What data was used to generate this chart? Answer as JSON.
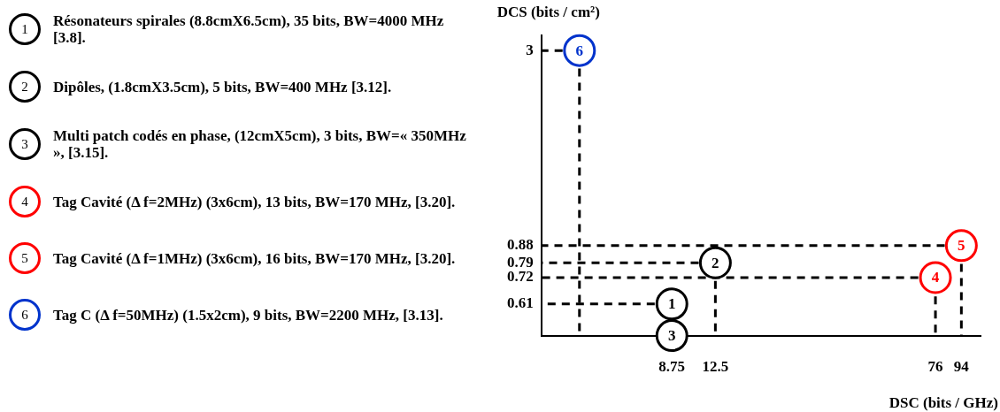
{
  "chart_data": {
    "type": "scatter",
    "xlabel": "DSC (bits / GHz)",
    "ylabel": "DCS (bits / cm²)",
    "log": "xy",
    "xlim": [
      3,
      110
    ],
    "ylim": [
      0.5,
      3.3
    ],
    "xticks": [
      8.75,
      12.5,
      76,
      94
    ],
    "yticks": [
      0.61,
      0.72,
      0.79,
      0.88,
      3
    ],
    "legend": "left",
    "marker": "circle",
    "series": [
      {
        "name": "Résonateurs spirales (8.8cmX6.5cm), 35 bits, BW=4000 MHz [3.8].",
        "color": "#000000",
        "x": [
          8.75
        ],
        "values": [
          0.61
        ]
      },
      {
        "name": "Dipôles, (1.8cmX3.5cm), 5 bits, BW=400 MHz [3.12].",
        "color": "#000000",
        "x": [
          12.5
        ],
        "values": [
          0.79
        ]
      },
      {
        "name": "Multi patch codés en phase, (12cmX5cm), 3 bits, BW=« 350MHz », [3.15].",
        "color": "#000000",
        "x": [
          8.75
        ],
        "values": [
          0.5
        ]
      },
      {
        "name": "Tag Cavité (Δ f=2MHz) (3x6cm), 13 bits, BW=170 MHz, [3.20].",
        "color": "#ff0000",
        "x": [
          76
        ],
        "values": [
          0.72
        ]
      },
      {
        "name": "Tag Cavité (Δ f=1MHz) (3x6cm), 16 bits, BW=170 MHz, [3.20].",
        "color": "#ff0000",
        "x": [
          94
        ],
        "values": [
          0.88
        ]
      },
      {
        "name": "Tag C (Δ f=50MHz) (1.5x2cm), 9 bits, BW=2200 MHz, [3.13].",
        "color": "#0033cc",
        "x": [
          4.1
        ],
        "values": [
          3
        ]
      },
      {
        "type": "line",
        "color": "#000000",
        "line_style": "dashed",
        "marker": "none",
        "x": [
          7.6,
          3
        ],
        "values": [
          0.61,
          0.61
        ]
      },
      {
        "type": "line",
        "color": "#000000",
        "line_style": "dashed",
        "marker": "none",
        "x": [
          10.9,
          3
        ],
        "values": [
          0.79,
          0.79
        ]
      },
      {
        "type": "line",
        "color": "#000000",
        "line_style": "dashed",
        "marker": "none",
        "x": [
          12.5,
          12.5
        ],
        "values": [
          0.705,
          0.5
        ]
      },
      {
        "type": "line",
        "color": "#000000",
        "line_style": "dashed",
        "marker": "none",
        "x": [
          66,
          3
        ],
        "values": [
          0.72,
          0.72
        ]
      },
      {
        "type": "line",
        "color": "#000000",
        "line_style": "dashed",
        "marker": "none",
        "x": [
          76,
          76
        ],
        "values": [
          0.64,
          0.5
        ]
      },
      {
        "type": "line",
        "color": "#000000",
        "line_style": "dashed",
        "marker": "none",
        "x": [
          82,
          3
        ],
        "values": [
          0.88,
          0.88
        ]
      },
      {
        "type": "line",
        "color": "#000000",
        "line_style": "dashed",
        "marker": "none",
        "x": [
          94,
          94
        ],
        "values": [
          0.785,
          0.5
        ]
      },
      {
        "type": "line",
        "color": "#000000",
        "line_style": "dashed",
        "marker": "none",
        "x": [
          3.57,
          3
        ],
        "values": [
          3,
          3
        ]
      },
      {
        "type": "line",
        "color": "#000000",
        "line_style": "dashed",
        "marker": "none",
        "x": [
          4.1,
          4.1
        ],
        "values": [
          2.68,
          0.5
        ]
      }
    ],
    "annotations": [
      {
        "text": "1",
        "x": 8.75,
        "y": 0.61
      },
      {
        "text": "2",
        "x": 12.5,
        "y": 0.79
      },
      {
        "text": "3",
        "x": 8.75,
        "y": 0.5
      },
      {
        "text": "4",
        "x": 76,
        "y": 0.72
      },
      {
        "text": "5",
        "x": 94,
        "y": 0.88
      },
      {
        "text": "6",
        "x": 4.1,
        "y": 3
      }
    ]
  }
}
